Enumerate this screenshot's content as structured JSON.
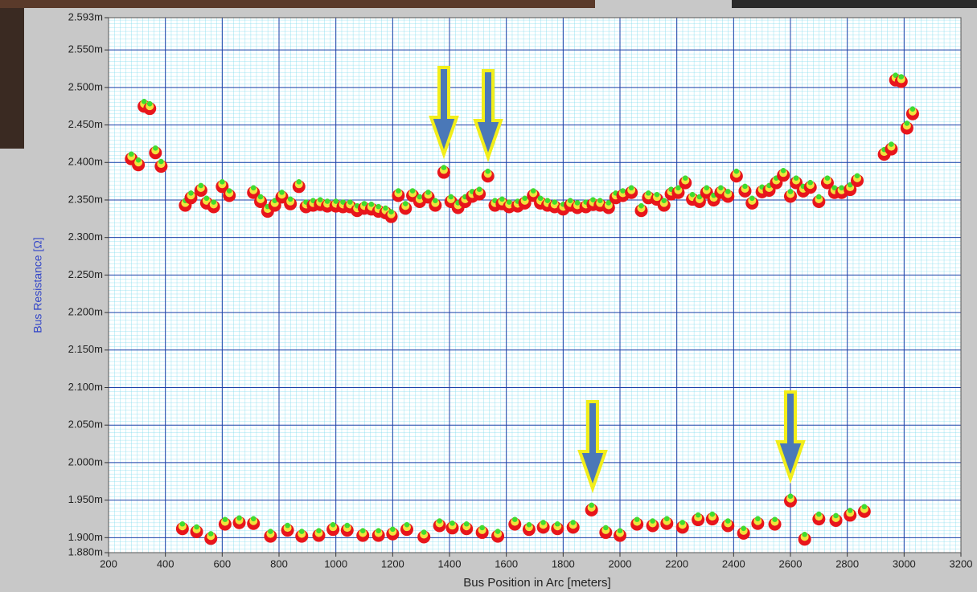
{
  "chart_data": {
    "type": "scatter",
    "xlabel": "Bus Position in Arc [meters]",
    "ylabel": "Bus Resistance [Ω]",
    "x": [
      280,
      305,
      325,
      345,
      365,
      385,
      470,
      490,
      525,
      545,
      570,
      600,
      625,
      710,
      735,
      760,
      785,
      810,
      840,
      870,
      895,
      920,
      945,
      970,
      1000,
      1025,
      1050,
      1075,
      1100,
      1125,
      1150,
      1175,
      1195,
      1220,
      1245,
      1270,
      1295,
      1325,
      1350,
      1380,
      1405,
      1430,
      1455,
      1480,
      1505,
      1535,
      1560,
      1585,
      1610,
      1640,
      1665,
      1695,
      1720,
      1745,
      1770,
      1800,
      1825,
      1850,
      1880,
      1905,
      1930,
      1960,
      1985,
      2010,
      2040,
      2075,
      2100,
      2130,
      2155,
      2180,
      2205,
      2230,
      2255,
      2280,
      2305,
      2330,
      2355,
      2380,
      2410,
      2440,
      2465,
      2500,
      2525,
      2550,
      2575,
      2600,
      2620,
      2645,
      2670,
      2700,
      2730,
      2755,
      2780,
      2810,
      2835,
      2930,
      2955,
      2970,
      2990,
      3010,
      3030,
      460,
      510,
      560,
      610,
      660,
      710,
      770,
      830,
      880,
      940,
      990,
      1040,
      1095,
      1150,
      1200,
      1250,
      1310,
      1365,
      1410,
      1460,
      1515,
      1570,
      1630,
      1680,
      1730,
      1780,
      1835,
      1900,
      1950,
      2000,
      2060,
      2115,
      2165,
      2220,
      2275,
      2325,
      2380,
      2435,
      2485,
      2545,
      2600,
      2650,
      2700,
      2760,
      2810,
      2860
    ],
    "values": [
      2.407,
      2.399,
      2.477,
      2.474,
      2.415,
      2.397,
      2.345,
      2.355,
      2.365,
      2.348,
      2.343,
      2.37,
      2.358,
      2.362,
      2.35,
      2.337,
      2.345,
      2.356,
      2.347,
      2.37,
      2.343,
      2.345,
      2.346,
      2.344,
      2.344,
      2.343,
      2.343,
      2.338,
      2.341,
      2.34,
      2.337,
      2.335,
      2.33,
      2.358,
      2.341,
      2.358,
      2.35,
      2.356,
      2.345,
      2.389,
      2.35,
      2.342,
      2.35,
      2.357,
      2.36,
      2.384,
      2.345,
      2.347,
      2.343,
      2.344,
      2.348,
      2.358,
      2.348,
      2.345,
      2.343,
      2.34,
      2.345,
      2.342,
      2.343,
      2.346,
      2.345,
      2.342,
      2.355,
      2.358,
      2.362,
      2.338,
      2.355,
      2.353,
      2.345,
      2.36,
      2.362,
      2.375,
      2.353,
      2.35,
      2.362,
      2.352,
      2.362,
      2.357,
      2.384,
      2.364,
      2.348,
      2.363,
      2.365,
      2.375,
      2.385,
      2.357,
      2.375,
      2.364,
      2.369,
      2.35,
      2.375,
      2.362,
      2.362,
      2.366,
      2.378,
      2.413,
      2.42,
      2.512,
      2.51,
      2.448,
      2.467,
      1.914,
      1.91,
      1.901,
      1.92,
      1.922,
      1.921,
      1.904,
      1.912,
      1.904,
      1.905,
      1.913,
      1.912,
      1.905,
      1.905,
      1.907,
      1.913,
      1.903,
      1.918,
      1.915,
      1.914,
      1.909,
      1.904,
      1.92,
      1.913,
      1.916,
      1.914,
      1.916,
      1.939,
      1.909,
      1.905,
      1.92,
      1.918,
      1.921,
      1.916,
      1.926,
      1.927,
      1.918,
      1.908,
      1.921,
      1.92,
      1.951,
      1.9,
      1.927,
      1.925,
      1.932,
      1.937
    ],
    "colors": [
      "#e8151b",
      "#f2e23c",
      "#3fdc2e"
    ],
    "xlim": [
      200,
      3200
    ],
    "ylim": [
      1.88,
      2.593
    ],
    "xticks": [
      200,
      400,
      600,
      800,
      1000,
      1200,
      1400,
      1600,
      1800,
      2000,
      2200,
      2400,
      2600,
      2800,
      3000,
      3200
    ],
    "yticks": [
      {
        "value": 1.88,
        "label": "1.880m"
      },
      {
        "value": 1.9,
        "label": "1.900m"
      },
      {
        "value": 1.95,
        "label": "1.950m"
      },
      {
        "value": 2.0,
        "label": "2.000m"
      },
      {
        "value": 2.05,
        "label": "2.050m"
      },
      {
        "value": 2.1,
        "label": "2.100m"
      },
      {
        "value": 2.15,
        "label": "2.150m"
      },
      {
        "value": 2.2,
        "label": "2.200m"
      },
      {
        "value": 2.25,
        "label": "2.250m"
      },
      {
        "value": 2.3,
        "label": "2.300m"
      },
      {
        "value": 2.35,
        "label": "2.350m"
      },
      {
        "value": 2.4,
        "label": "2.400m"
      },
      {
        "value": 2.45,
        "label": "2.450m"
      },
      {
        "value": 2.5,
        "label": "2.500m"
      },
      {
        "value": 2.55,
        "label": "2.550m"
      },
      {
        "value": 2.593,
        "label": "2.593m"
      }
    ],
    "grid": true
  }
}
